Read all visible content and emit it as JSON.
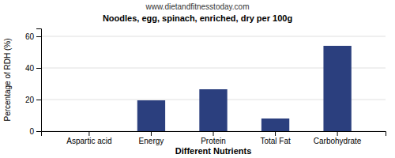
{
  "chart_data": {
    "type": "bar",
    "title": "Noodles, egg, spinach, enriched, dry per 100g",
    "subtitle": "www.dietandfitnesstoday.com",
    "xlabel": "Different Nutrients",
    "ylabel": "Percentage of RDH (%)",
    "categories": [
      "Aspartic acid",
      "Energy",
      "Protein",
      "Total Fat",
      "Carbohydrate"
    ],
    "values": [
      0,
      19.5,
      26.5,
      8,
      54
    ],
    "color": "#2B3F7E",
    "ylim": [
      0,
      65
    ],
    "yticks": [
      0,
      20,
      40,
      60
    ],
    "grid": true
  }
}
